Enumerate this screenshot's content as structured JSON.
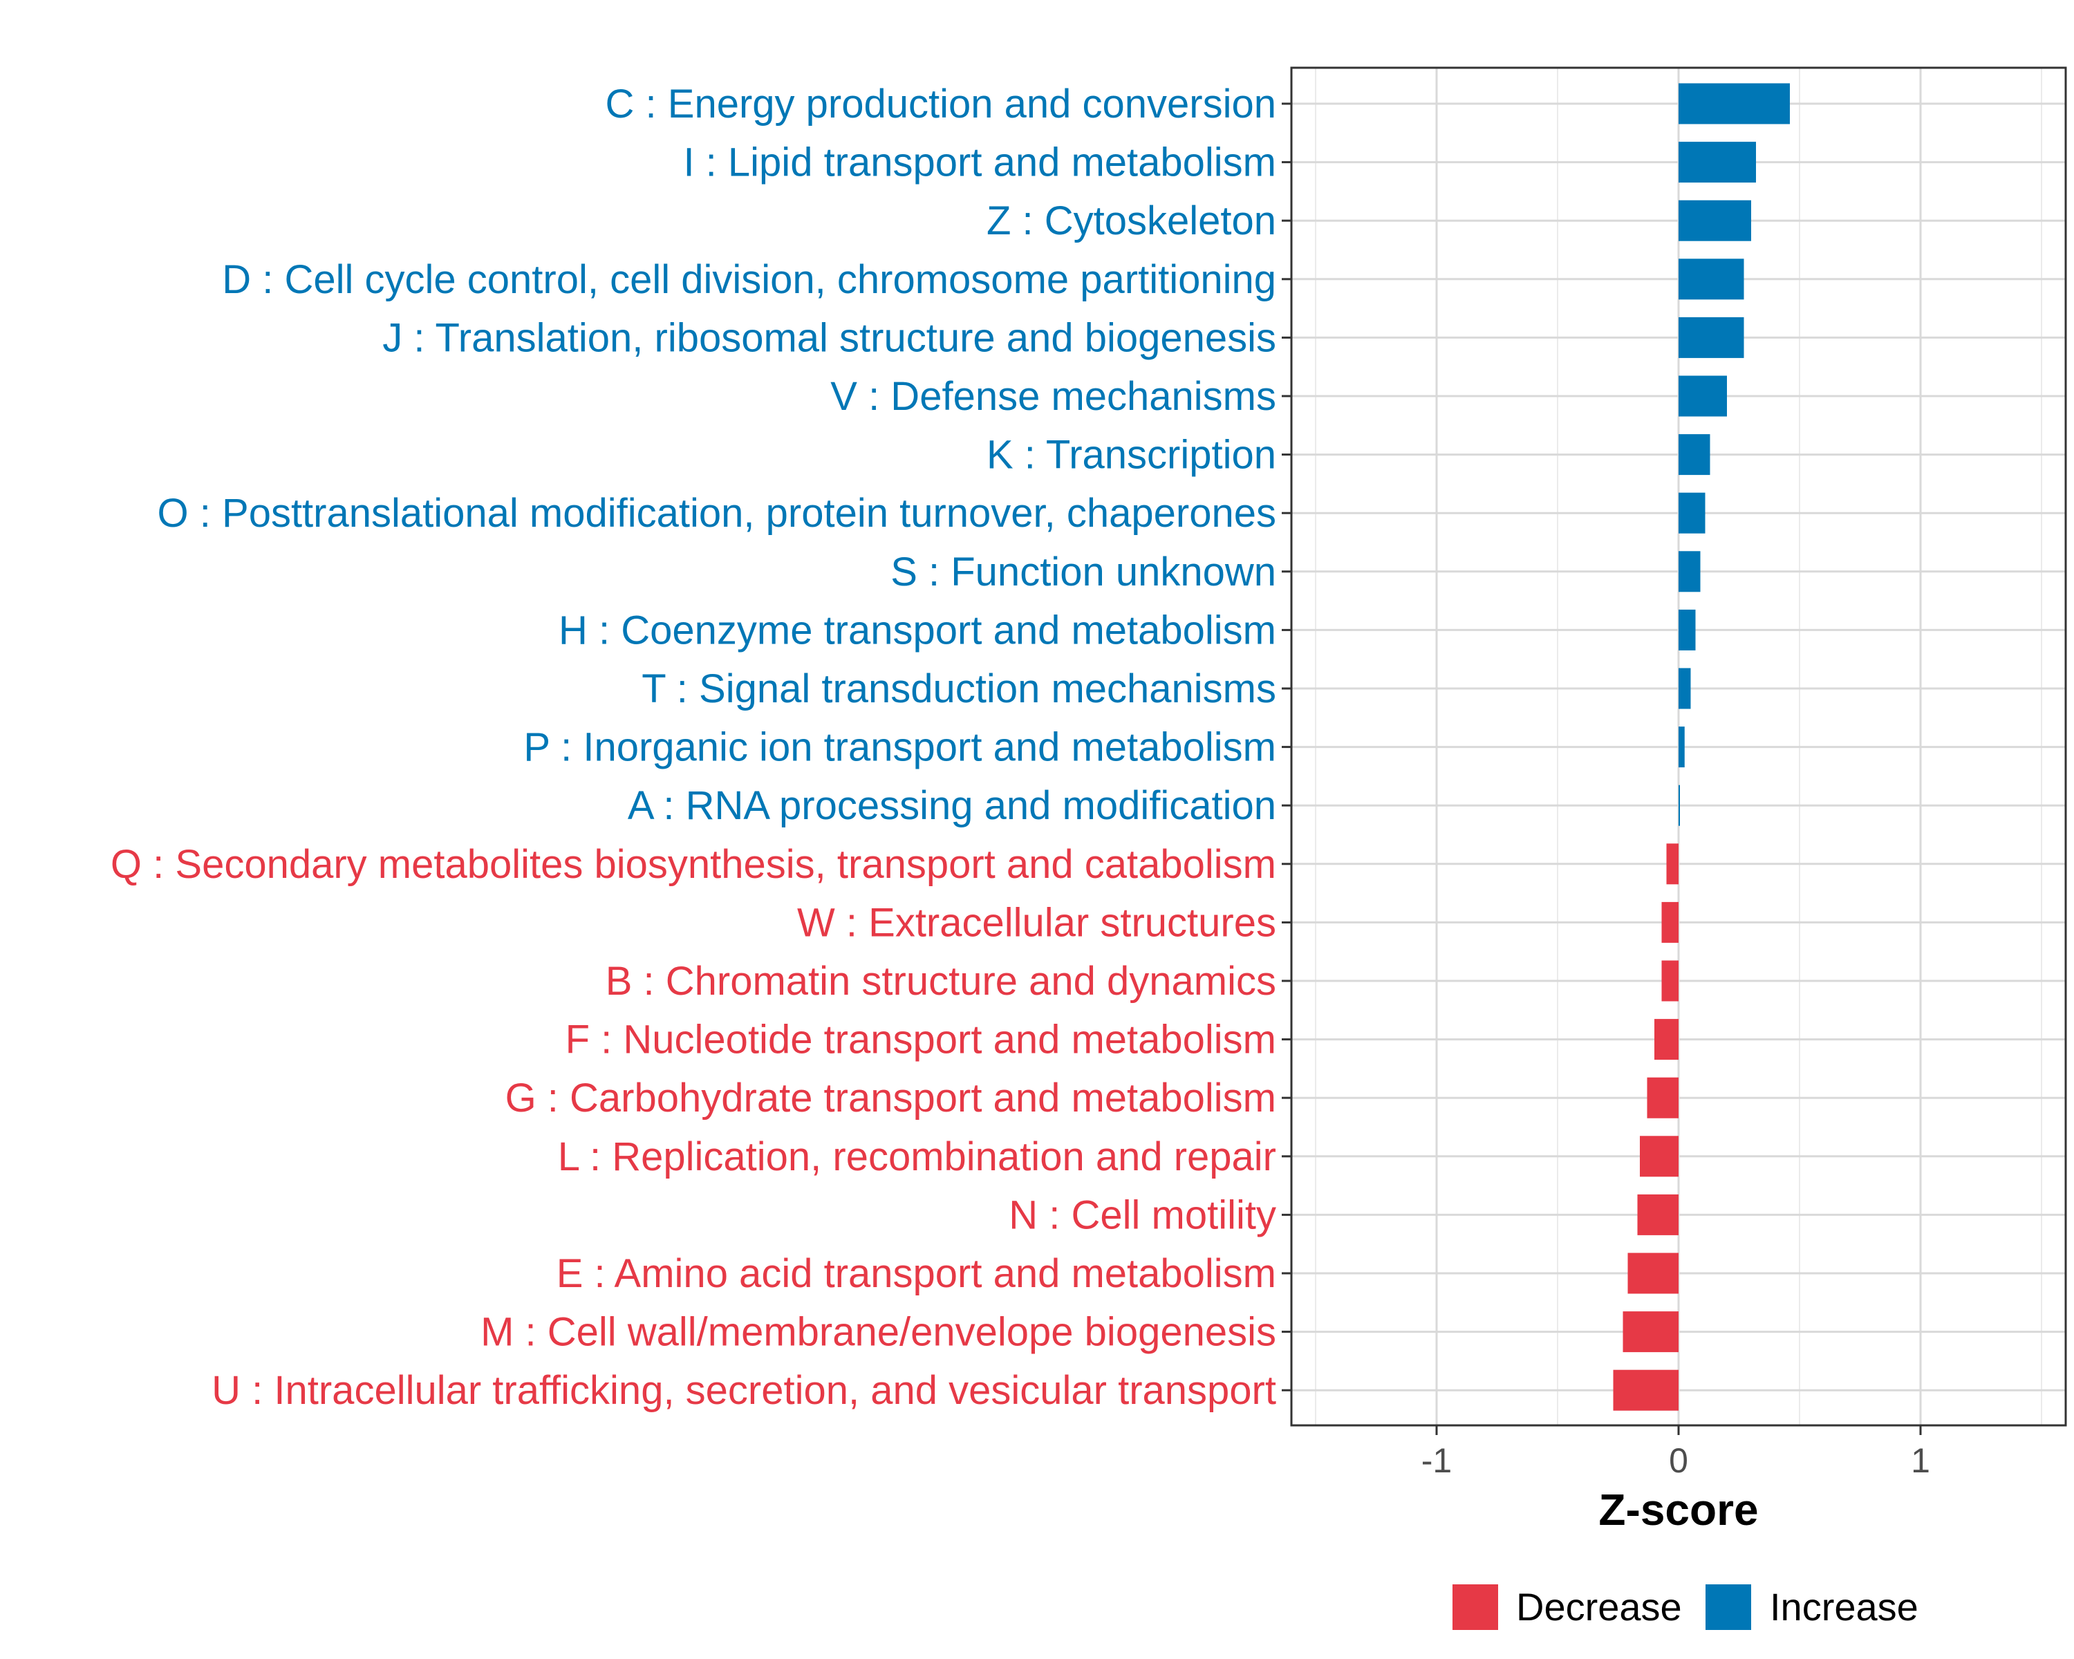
{
  "chart_data": {
    "type": "bar",
    "orientation": "horizontal",
    "title": "",
    "xlabel": "Z-score",
    "ylabel": "",
    "xlim": [
      -1.6,
      1.6
    ],
    "xticks": [
      -1,
      0,
      1
    ],
    "xtick_labels": [
      "-1",
      "0",
      "1"
    ],
    "grid": true,
    "legend_position": "bottom",
    "colors": {
      "Decrease": "#e63946",
      "Increase": "#0077b6"
    },
    "legend": [
      {
        "label": "Decrease",
        "color": "#e63946"
      },
      {
        "label": "Increase",
        "color": "#0077b6"
      }
    ],
    "categories": [
      "C : Energy production and conversion",
      "I : Lipid transport and metabolism",
      "Z : Cytoskeleton",
      "D : Cell cycle control, cell division, chromosome partitioning",
      "J : Translation, ribosomal structure and biogenesis",
      "V : Defense mechanisms",
      "K : Transcription",
      "O : Posttranslational modification, protein turnover, chaperones",
      "S : Function unknown",
      "H : Coenzyme transport and metabolism",
      "T : Signal transduction mechanisms",
      "P : Inorganic ion transport and metabolism",
      "A : RNA processing and modification",
      "Q : Secondary metabolites biosynthesis, transport and catabolism",
      "W : Extracellular structures",
      "B : Chromatin structure and dynamics",
      "F : Nucleotide transport and metabolism",
      "G : Carbohydrate transport and metabolism",
      "L : Replication, recombination and repair",
      "N : Cell motility",
      "E : Amino acid transport and metabolism",
      "M : Cell wall/membrane/envelope biogenesis",
      "U : Intracellular trafficking, secretion, and vesicular transport"
    ],
    "values": [
      0.46,
      0.32,
      0.3,
      0.27,
      0.27,
      0.2,
      0.13,
      0.11,
      0.09,
      0.07,
      0.05,
      0.025,
      0.005,
      -0.05,
      -0.07,
      -0.07,
      -0.1,
      -0.13,
      -0.16,
      -0.17,
      -0.21,
      -0.23,
      -0.27
    ],
    "groups": [
      "Increase",
      "Increase",
      "Increase",
      "Increase",
      "Increase",
      "Increase",
      "Increase",
      "Increase",
      "Increase",
      "Increase",
      "Increase",
      "Increase",
      "Increase",
      "Decrease",
      "Decrease",
      "Decrease",
      "Decrease",
      "Decrease",
      "Decrease",
      "Decrease",
      "Decrease",
      "Decrease",
      "Decrease"
    ]
  }
}
